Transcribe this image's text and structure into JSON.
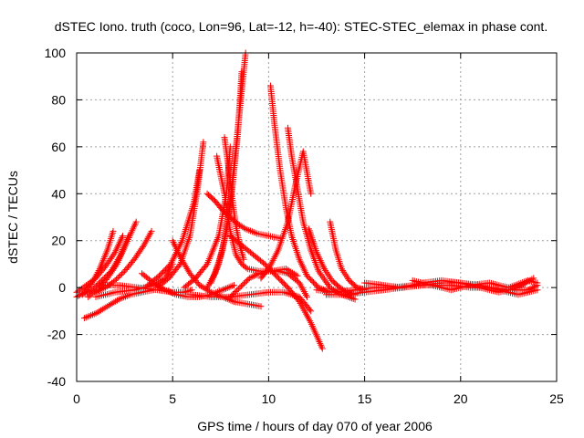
{
  "chart_data": {
    "type": "scatter",
    "title": "dSTEC Iono. truth (coco, Lon=96, Lat=-12, h=-40): STEC-STEC_elemax in phase cont.",
    "xlabel": "GPS time / hours of day 070 of year 2006",
    "ylabel": "dSTEC  / TECUs",
    "xlim": [
      0,
      25
    ],
    "ylim": [
      -40,
      100
    ],
    "xticks": [
      0,
      5,
      10,
      15,
      20,
      25
    ],
    "yticks": [
      -40,
      -20,
      0,
      20,
      40,
      60,
      80,
      100
    ],
    "grid": true,
    "marker": "+",
    "color": "#ff0000",
    "series": [
      {
        "x": [
          0.0,
          0.4,
          0.8,
          1.2,
          1.6,
          1.9
        ],
        "y": [
          -4,
          -2,
          2,
          8,
          16,
          24
        ]
      },
      {
        "x": [
          0.0,
          0.5,
          1.0,
          1.5,
          2.0,
          2.4
        ],
        "y": [
          -2,
          1,
          4,
          9,
          15,
          22
        ]
      },
      {
        "x": [
          0.3,
          0.8,
          1.3,
          1.8,
          2.3,
          2.7
        ],
        "y": [
          -3,
          -1,
          3,
          7,
          14,
          22
        ]
      },
      {
        "x": [
          0.6,
          1.1,
          1.6,
          2.1,
          2.6,
          3.1
        ],
        "y": [
          -4,
          -1,
          4,
          10,
          19,
          28
        ]
      },
      {
        "x": [
          1.0,
          1.5,
          2.0,
          2.5,
          3.0,
          3.5,
          3.9
        ],
        "y": [
          -2,
          0,
          3,
          7,
          12,
          18,
          24
        ]
      },
      {
        "x": [
          0.4,
          1.0,
          1.6,
          2.2,
          2.8,
          3.4,
          4.0
        ],
        "y": [
          -13,
          -11,
          -8,
          -5,
          -3,
          -2,
          -1
        ]
      },
      {
        "x": [
          1.0,
          2.0,
          3.0,
          4.0,
          4.6,
          5.0
        ],
        "y": [
          -4,
          -2,
          -1,
          1,
          4,
          10
        ]
      },
      {
        "x": [
          1.2,
          2.2,
          3.2,
          4.2,
          5.0,
          5.6,
          6.0
        ],
        "y": [
          1,
          1,
          0,
          -1,
          -2,
          -2,
          -1
        ]
      },
      {
        "x": [
          3.7,
          4.3,
          4.9,
          5.5,
          6.1,
          6.4
        ],
        "y": [
          1,
          5,
          10,
          20,
          36,
          50
        ]
      },
      {
        "x": [
          4.2,
          4.8,
          5.4,
          5.9,
          6.3,
          6.6
        ],
        "y": [
          0,
          4,
          10,
          22,
          42,
          62
        ]
      },
      {
        "x": [
          5.0,
          5.4,
          5.9,
          6.4,
          7.0,
          7.6,
          8.2,
          8.9,
          9.6
        ],
        "y": [
          20,
          13,
          6,
          1,
          -2,
          -4,
          -6,
          -7,
          -8
        ]
      },
      {
        "x": [
          6.8,
          7.2,
          7.6,
          8.0,
          8.4,
          8.8,
          9.4,
          10.0,
          10.6
        ],
        "y": [
          40,
          37,
          33,
          30,
          27,
          25,
          23,
          22,
          21
        ]
      },
      {
        "x": [
          5.6,
          6.2,
          6.8,
          7.4,
          7.8,
          8.0
        ],
        "y": [
          0,
          4,
          10,
          22,
          40,
          60
        ]
      },
      {
        "x": [
          7.3,
          7.7,
          8.0,
          8.3,
          8.6,
          8.9,
          9.5,
          10.2,
          10.9,
          11.5
        ],
        "y": [
          56,
          40,
          24,
          14,
          10,
          8,
          7,
          7,
          8,
          5
        ]
      },
      {
        "x": [
          7.7,
          7.9,
          8.1,
          8.3,
          8.5,
          8.7
        ],
        "y": [
          64,
          52,
          38,
          26,
          18,
          12
        ]
      },
      {
        "x": [
          6.8,
          7.2,
          7.6,
          7.9,
          8.2,
          8.5,
          8.8
        ],
        "y": [
          0,
          6,
          16,
          30,
          52,
          76,
          100
        ]
      },
      {
        "x": [
          7.0,
          7.4,
          7.8,
          8.1,
          8.4,
          8.6
        ],
        "y": [
          2,
          10,
          24,
          42,
          66,
          92
        ]
      },
      {
        "x": [
          8.0,
          8.6,
          9.2,
          9.8,
          10.4,
          11.0,
          11.6,
          12.2,
          12.8
        ],
        "y": [
          22,
          18,
          14,
          10,
          5,
          0,
          -6,
          -15,
          -26
        ]
      },
      {
        "x": [
          10.1,
          10.3,
          10.6,
          10.9,
          11.2,
          11.6,
          12.0,
          12.6,
          13.2
        ],
        "y": [
          86,
          70,
          50,
          34,
          22,
          12,
          5,
          0,
          -2
        ]
      },
      {
        "x": [
          11.0,
          11.2,
          11.5,
          11.8,
          12.2,
          12.6,
          13.2,
          13.8,
          14.5
        ],
        "y": [
          68,
          56,
          42,
          28,
          16,
          7,
          0,
          -3,
          -5
        ]
      },
      {
        "x": [
          9.6,
          10.0,
          10.5,
          11.0,
          11.4,
          11.8,
          12.2
        ],
        "y": [
          4,
          8,
          16,
          28,
          44,
          58,
          40
        ]
      },
      {
        "x": [
          12.1,
          12.5,
          12.9,
          13.3,
          13.7,
          14.1,
          14.5
        ],
        "y": [
          25,
          15,
          8,
          3,
          0,
          -2,
          -3
        ]
      },
      {
        "x": [
          13.2,
          13.5,
          13.8,
          14.2,
          14.6,
          15.0
        ],
        "y": [
          28,
          16,
          8,
          3,
          0,
          -1
        ]
      },
      {
        "x": [
          8.0,
          8.5,
          9.0,
          9.5,
          10.0,
          10.5,
          11.0,
          11.6,
          12.0
        ],
        "y": [
          -4,
          0,
          4,
          6,
          7,
          7,
          6,
          2,
          -4
        ]
      },
      {
        "x": [
          6.0,
          7.0,
          8.0,
          9.0,
          10.0,
          10.8,
          11.6,
          12.2
        ],
        "y": [
          -3,
          -4,
          -4,
          -3,
          -2,
          -2,
          -4,
          -10
        ]
      },
      {
        "x": [
          3.4,
          4.0,
          4.6,
          5.2,
          5.8,
          6.4,
          7.0,
          7.6,
          8.2
        ],
        "y": [
          6,
          2,
          -1,
          -3,
          -4,
          -4,
          -3,
          -1,
          1
        ]
      },
      {
        "x": [
          12.5,
          13.5,
          14.5,
          15.5,
          16.5,
          17.5,
          18.5,
          19.5,
          20.5,
          21.5,
          22.5,
          23.5,
          24.0
        ],
        "y": [
          -1,
          -2,
          -1,
          0,
          0,
          1,
          1,
          1,
          0,
          0,
          -1,
          -1,
          1
        ]
      },
      {
        "x": [
          13.0,
          14.0,
          15.0,
          16.0,
          17.0,
          18.0,
          19.0,
          20.0,
          21.0,
          22.0,
          23.0,
          24.0
        ],
        "y": [
          -3,
          -3,
          -2,
          -1,
          0,
          1,
          2,
          2,
          1,
          -1,
          -3,
          -1
        ]
      },
      {
        "x": [
          15.0,
          16.0,
          17.0,
          18.0,
          19.0,
          20.0,
          21.0,
          22.0,
          23.0,
          23.8
        ],
        "y": [
          2,
          1,
          0,
          2,
          3,
          2,
          0,
          -2,
          0,
          4
        ]
      },
      {
        "x": [
          17.5,
          18.5,
          19.5,
          20.5,
          21.5,
          22.5,
          23.5,
          24.0
        ],
        "y": [
          3,
          1,
          -1,
          1,
          2,
          0,
          3,
          2
        ]
      }
    ]
  }
}
